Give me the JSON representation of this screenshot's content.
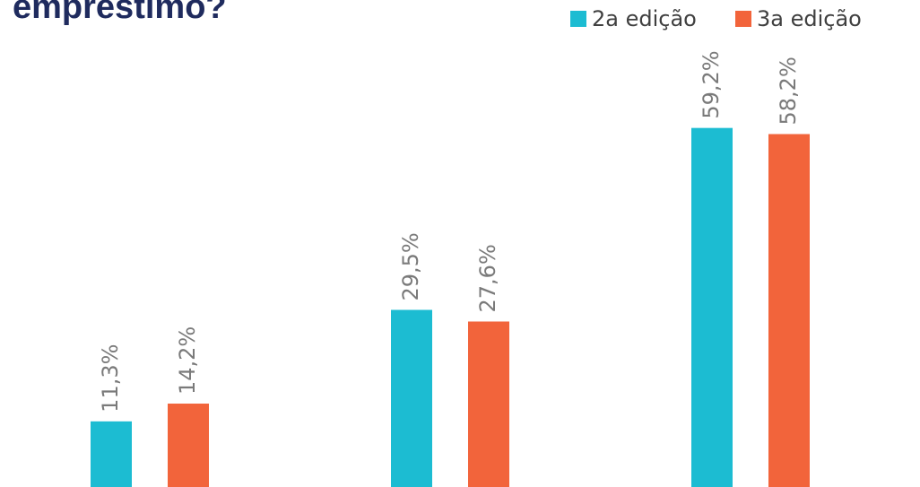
{
  "chart_data": {
    "type": "bar",
    "title": "empréstimo?",
    "categories": [
      null,
      null,
      null
    ],
    "series": [
      {
        "name": "2a edição",
        "color": "#1cbcd2",
        "values": [
          11.3,
          29.5,
          59.2
        ],
        "value_labels": [
          "11,3%",
          "29,5%",
          "59,2%"
        ]
      },
      {
        "name": "3a edição",
        "color": "#f2643b",
        "values": [
          14.2,
          27.6,
          58.2
        ],
        "value_labels": [
          "14,2%",
          "27,6%",
          "58,2%"
        ]
      }
    ],
    "legend": "top-right"
  }
}
